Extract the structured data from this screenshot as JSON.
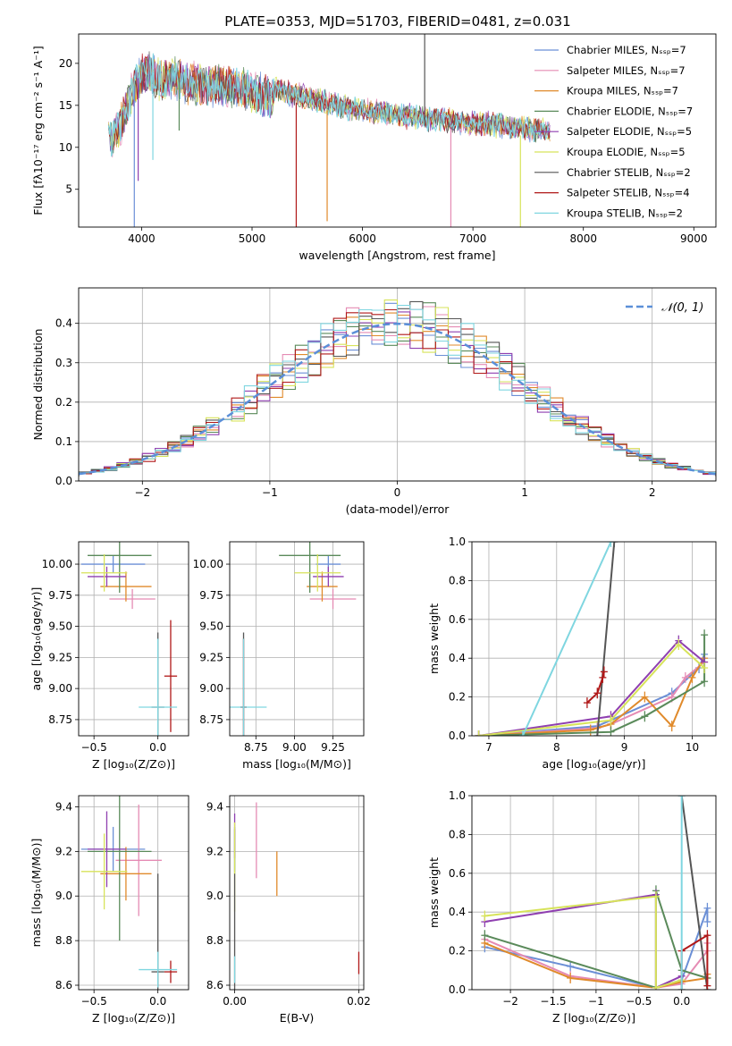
{
  "title": "PLATE=0353, MJD=51703, FIBERID=0481, z=0.031",
  "colors": {
    "chabrier_miles": "#6b8fd6",
    "salpeter_miles": "#e58bb4",
    "kroupa_miles": "#e08a2b",
    "chabrier_elodie": "#5a8a5a",
    "salpeter_elodie": "#8f3fb0",
    "kroupa_elodie": "#d7e35a",
    "chabrier_stelib": "#555555",
    "salpeter_stelib": "#b01818",
    "kroupa_stelib": "#7fd6e0",
    "gaussian": "#5b8fd8",
    "grid": "#b0b0b0"
  },
  "chart_data": [
    {
      "type": "line",
      "id": "spectrum",
      "xlabel": "wavelength [Angstrom, rest frame]",
      "ylabel": "Flux [fλ10⁻¹⁷ erg cm⁻² s⁻¹ A⁻¹]",
      "xlim": [
        3430,
        9200
      ],
      "ylim": [
        0.5,
        23.5
      ],
      "xticks": [
        4000,
        5000,
        6000,
        7000,
        8000,
        9000
      ],
      "yticks": [
        5,
        10,
        15,
        20
      ],
      "grid": false,
      "legend_position": "top-right",
      "series": [
        {
          "name": "Chabrier MILES, N_SSP=7",
          "color_key": "chabrier_miles"
        },
        {
          "name": "Salpeter MILES, N_SSP=7",
          "color_key": "salpeter_miles"
        },
        {
          "name": "Kroupa MILES, N_SSP=7",
          "color_key": "kroupa_miles"
        },
        {
          "name": "Chabrier ELODIE, N_SSP=7",
          "color_key": "chabrier_elodie"
        },
        {
          "name": "Salpeter ELODIE, N_SSP=5",
          "color_key": "salpeter_elodie"
        },
        {
          "name": "Kroupa ELODIE, N_SSP=5",
          "color_key": "kroupa_elodie"
        },
        {
          "name": "Chabrier STELIB, N_SSP=2",
          "color_key": "chabrier_stelib"
        },
        {
          "name": "Salpeter STELIB, N_SSP=4",
          "color_key": "salpeter_stelib"
        },
        {
          "name": "Kroupa STELIB, N_SSP=2",
          "color_key": "kroupa_stelib"
        }
      ],
      "envelope": {
        "x": [
          3700,
          3800,
          3900,
          4000,
          4100,
          4200,
          4300,
          4400,
          4600,
          4800,
          5000,
          5200,
          5500,
          5800,
          6000,
          6300,
          6600,
          6900,
          7200,
          7500,
          7700
        ],
        "y": [
          12.5,
          14.5,
          18.5,
          21.0,
          21.0,
          20.0,
          20.5,
          20.0,
          19.5,
          19.5,
          19.0,
          18.0,
          17.0,
          16.0,
          15.5,
          15.0,
          14.5,
          14.0,
          13.8,
          13.3,
          13.0
        ]
      },
      "spikes": [
        {
          "x": 3934,
          "y": 0.5
        },
        {
          "x": 3969,
          "y": 6.0
        },
        {
          "x": 4102,
          "y": 8.5
        },
        {
          "x": 4340,
          "y": 12.0
        },
        {
          "x": 5400,
          "y": 0.5
        },
        {
          "x": 5680,
          "y": 1.2
        },
        {
          "x": 6563,
          "y": 23.5
        },
        {
          "x": 6800,
          "y": 0.5
        },
        {
          "x": 7430,
          "y": 0.5
        }
      ]
    },
    {
      "type": "histogram",
      "id": "residuals",
      "xlabel": "(data-model)/error",
      "ylabel": "Normed distribution",
      "xlim": [
        -2.5,
        2.5
      ],
      "ylim": [
        0,
        0.49
      ],
      "xticks": [
        -2,
        -1,
        0,
        1,
        2
      ],
      "yticks": [
        0.0,
        0.1,
        0.2,
        0.3,
        0.4
      ],
      "grid": true,
      "legend_position": "top-right",
      "gaussian_label": "𝒩(0, 1)",
      "bin_width": 0.1
    },
    {
      "type": "scatter",
      "id": "age_vs_Z",
      "xlabel": "Z [log₁₀(Z/Z⊙)]",
      "ylabel": "age  [log₁₀(age/yr)]",
      "xlim": [
        -0.62,
        0.24
      ],
      "ylim": [
        8.62,
        10.18
      ],
      "xticks": [
        -0.5,
        0.0
      ],
      "yticks": [
        8.75,
        9.0,
        9.25,
        9.5,
        9.75,
        10.0
      ],
      "points": [
        {
          "key": "chabrier_miles",
          "x": -0.35,
          "y": 10.0,
          "xerr": 0.25,
          "yerr": 0.07
        },
        {
          "key": "salpeter_miles",
          "x": -0.2,
          "y": 9.72,
          "xerr": 0.18,
          "yerr": 0.08
        },
        {
          "key": "kroupa_miles",
          "x": -0.25,
          "y": 9.82,
          "xerr": 0.2,
          "yerr": 0.12
        },
        {
          "key": "chabrier_elodie",
          "x": -0.3,
          "y": 10.07,
          "xerr": 0.25,
          "yerr": 0.3
        },
        {
          "key": "salpeter_elodie",
          "x": -0.4,
          "y": 9.9,
          "xerr": 0.15,
          "yerr": 0.08
        },
        {
          "key": "kroupa_elodie",
          "x": -0.42,
          "y": 9.93,
          "xerr": 0.18,
          "yerr": 0.15
        },
        {
          "key": "chabrier_stelib",
          "x": 0.0,
          "y": 8.85,
          "xerr": 0.05,
          "yerr": 0.6
        },
        {
          "key": "salpeter_stelib",
          "x": 0.1,
          "y": 9.1,
          "xerr": 0.05,
          "yerr": 0.45
        },
        {
          "key": "kroupa_stelib",
          "x": 0.0,
          "y": 8.85,
          "xerr": 0.15,
          "yerr": 0.55
        }
      ]
    },
    {
      "type": "scatter",
      "id": "age_vs_mass",
      "xlabel": "mass [log₁₀(M/M⊙)]",
      "ylabel": "",
      "xlim": [
        8.58,
        9.45
      ],
      "ylim": [
        8.62,
        10.18
      ],
      "xticks": [
        8.75,
        9.0,
        9.25
      ],
      "yticks": [
        8.75,
        9.0,
        9.25,
        9.5,
        9.75,
        10.0
      ],
      "points": [
        {
          "key": "chabrier_miles",
          "x": 9.22,
          "y": 10.0,
          "xerr": 0.08,
          "yerr": 0.07
        },
        {
          "key": "salpeter_miles",
          "x": 9.25,
          "y": 9.72,
          "xerr": 0.15,
          "yerr": 0.08
        },
        {
          "key": "kroupa_miles",
          "x": 9.18,
          "y": 9.82,
          "xerr": 0.1,
          "yerr": 0.12
        },
        {
          "key": "chabrier_elodie",
          "x": 9.1,
          "y": 10.07,
          "xerr": 0.2,
          "yerr": 0.3
        },
        {
          "key": "salpeter_elodie",
          "x": 9.22,
          "y": 9.9,
          "xerr": 0.1,
          "yerr": 0.08
        },
        {
          "key": "kroupa_elodie",
          "x": 9.15,
          "y": 9.93,
          "xerr": 0.15,
          "yerr": 0.15
        },
        {
          "key": "chabrier_stelib",
          "x": 8.67,
          "y": 8.85,
          "xerr": 0.02,
          "yerr": 0.6
        },
        {
          "key": "salpeter_stelib",
          "x": 8.67,
          "y": 8.85,
          "xerr": 0.02,
          "yerr": 0.55
        },
        {
          "key": "kroupa_stelib",
          "x": 8.67,
          "y": 8.85,
          "xerr": 0.15,
          "yerr": 0.55
        }
      ]
    },
    {
      "type": "line",
      "id": "weight_vs_age",
      "xlabel": "age  [log₁₀(age/yr)]",
      "ylabel": "mass weight",
      "xlim": [
        6.75,
        10.35
      ],
      "ylim": [
        0,
        1.0
      ],
      "xticks": [
        7,
        8,
        9,
        10
      ],
      "yticks": [
        0.0,
        0.2,
        0.4,
        0.6,
        0.8,
        1.0
      ],
      "grid": true,
      "series": [
        {
          "key": "chabrier_miles",
          "x": [
            6.85,
            8.6,
            8.8,
            9.7,
            10.1,
            10.18
          ],
          "y": [
            0.0,
            0.05,
            0.08,
            0.22,
            0.35,
            0.42
          ]
        },
        {
          "key": "salpeter_miles",
          "x": [
            6.85,
            8.6,
            8.8,
            9.7,
            9.9,
            10.18
          ],
          "y": [
            0.0,
            0.04,
            0.06,
            0.2,
            0.3,
            0.38
          ]
        },
        {
          "key": "kroupa_miles",
          "x": [
            6.85,
            8.5,
            8.8,
            9.3,
            9.7,
            10.0,
            10.18
          ],
          "y": [
            0.0,
            0.03,
            0.06,
            0.2,
            0.05,
            0.3,
            0.4
          ]
        },
        {
          "key": "chabrier_elodie",
          "x": [
            6.85,
            8.8,
            9.3,
            10.18,
            10.18
          ],
          "y": [
            0.0,
            0.02,
            0.1,
            0.28,
            0.52
          ]
        },
        {
          "key": "salpeter_elodie",
          "x": [
            6.85,
            8.8,
            9.8,
            10.18
          ],
          "y": [
            0.0,
            0.1,
            0.49,
            0.38
          ]
        },
        {
          "key": "kroupa_elodie",
          "x": [
            6.85,
            8.8,
            9.8,
            10.18
          ],
          "y": [
            0.0,
            0.08,
            0.47,
            0.35
          ]
        },
        {
          "key": "chabrier_stelib",
          "x": [
            8.6,
            8.85
          ],
          "y": [
            0.0,
            1.0
          ]
        },
        {
          "key": "salpeter_stelib",
          "x": [
            8.45,
            8.6,
            8.68,
            8.7
          ],
          "y": [
            0.17,
            0.22,
            0.3,
            0.33
          ]
        },
        {
          "key": "kroupa_stelib",
          "x": [
            7.5,
            8.8
          ],
          "y": [
            0.0,
            1.0
          ]
        }
      ]
    },
    {
      "type": "scatter",
      "id": "mass_vs_Z",
      "xlabel": "Z [log₁₀(Z/Z⊙)]",
      "ylabel": "mass [log₁₀(M/M⊙)]",
      "xlim": [
        -0.62,
        0.24
      ],
      "ylim": [
        8.58,
        9.45
      ],
      "xticks": [
        -0.5,
        0.0
      ],
      "yticks": [
        8.6,
        8.8,
        9.0,
        9.2,
        9.4
      ],
      "points": [
        {
          "key": "chabrier_miles",
          "x": -0.35,
          "y": 9.21,
          "xerr": 0.25,
          "yerr": 0.1
        },
        {
          "key": "salpeter_miles",
          "x": -0.15,
          "y": 9.16,
          "xerr": 0.18,
          "yerr": 0.25
        },
        {
          "key": "kroupa_miles",
          "x": -0.25,
          "y": 9.1,
          "xerr": 0.2,
          "yerr": 0.12
        },
        {
          "key": "chabrier_elodie",
          "x": -0.3,
          "y": 9.2,
          "xerr": 0.25,
          "yerr": 0.4
        },
        {
          "key": "salpeter_elodie",
          "x": -0.4,
          "y": 9.21,
          "xerr": 0.15,
          "yerr": 0.17
        },
        {
          "key": "kroupa_elodie",
          "x": -0.42,
          "y": 9.11,
          "xerr": 0.18,
          "yerr": 0.17
        },
        {
          "key": "chabrier_stelib",
          "x": 0.0,
          "y": 8.66,
          "xerr": 0.05,
          "yerr": 0.44
        },
        {
          "key": "salpeter_stelib",
          "x": 0.1,
          "y": 8.66,
          "xerr": 0.05,
          "yerr": 0.05
        },
        {
          "key": "kroupa_stelib",
          "x": 0.0,
          "y": 8.67,
          "xerr": 0.15,
          "yerr": 0.08
        }
      ]
    },
    {
      "type": "scatter",
      "id": "mass_vs_ebv",
      "xlabel": "E(B-V)",
      "ylabel": "",
      "xlim": [
        -0.0008,
        0.0208
      ],
      "ylim": [
        8.58,
        9.45
      ],
      "xticks": [
        0.0,
        0.02
      ],
      "yticks": [
        8.6,
        8.8,
        9.0,
        9.2,
        9.4
      ],
      "points": [
        {
          "key": "chabrier_miles",
          "x": 0.0,
          "y": 9.21,
          "xerr": 0.0,
          "yerr": 0.1
        },
        {
          "key": "salpeter_miles",
          "x": 0.0035,
          "y": 9.25,
          "xerr": 0.0,
          "yerr": 0.17
        },
        {
          "key": "kroupa_miles",
          "x": 0.0068,
          "y": 9.1,
          "xerr": 0.0,
          "yerr": 0.1
        },
        {
          "key": "chabrier_elodie",
          "x": 0.0,
          "y": 9.2,
          "xerr": 0.0,
          "yerr": 0.1
        },
        {
          "key": "salpeter_elodie",
          "x": 0.0,
          "y": 9.27,
          "xerr": 0.0,
          "yerr": 0.1
        },
        {
          "key": "kroupa_elodie",
          "x": 0.0,
          "y": 9.13,
          "xerr": 0.0,
          "yerr": 0.2
        },
        {
          "key": "chabrier_stelib",
          "x": 0.0,
          "y": 8.66,
          "xerr": 0.0,
          "yerr": 0.44
        },
        {
          "key": "salpeter_stelib",
          "x": 0.02,
          "y": 8.7,
          "xerr": 0.0,
          "yerr": 0.05
        },
        {
          "key": "kroupa_stelib",
          "x": 0.0,
          "y": 8.67,
          "xerr": 0.0,
          "yerr": 0.06
        }
      ]
    },
    {
      "type": "line",
      "id": "weight_vs_Z",
      "xlabel": "Z [log₁₀(Z/Z⊙)]",
      "ylabel": "mass weight",
      "xlim": [
        -2.45,
        0.4
      ],
      "ylim": [
        0,
        1.0
      ],
      "xticks": [
        -2.0,
        -1.5,
        -1.0,
        -0.5,
        0.0
      ],
      "yticks": [
        0.0,
        0.2,
        0.4,
        0.6,
        0.8,
        1.0
      ],
      "grid": true,
      "series": [
        {
          "key": "chabrier_miles",
          "x": [
            -2.3,
            -1.3,
            -0.3,
            0.0,
            0.3,
            0.3
          ],
          "y": [
            0.22,
            0.12,
            0.01,
            0.05,
            0.42,
            0.35
          ]
        },
        {
          "key": "salpeter_miles",
          "x": [
            -2.3,
            -1.3,
            -0.3,
            0.0,
            0.3,
            0.3
          ],
          "y": [
            0.26,
            0.07,
            0.01,
            0.03,
            0.2,
            0.24
          ]
        },
        {
          "key": "kroupa_miles",
          "x": [
            -2.3,
            -1.3,
            -0.3,
            0.0,
            0.3,
            0.3
          ],
          "y": [
            0.24,
            0.06,
            0.01,
            0.04,
            0.06,
            0.08
          ]
        },
        {
          "key": "chabrier_elodie",
          "x": [
            -2.3,
            -0.3,
            -0.3,
            0.0,
            0.3
          ],
          "y": [
            0.28,
            0.01,
            0.51,
            0.1,
            0.06
          ]
        },
        {
          "key": "salpeter_elodie",
          "x": [
            -2.3,
            -0.3,
            -0.3,
            0.0
          ],
          "y": [
            0.35,
            0.49,
            0.01,
            0.07
          ]
        },
        {
          "key": "kroupa_elodie",
          "x": [
            -2.3,
            -0.3,
            -0.3,
            0.0
          ],
          "y": [
            0.38,
            0.48,
            0.01,
            0.05
          ]
        },
        {
          "key": "chabrier_stelib",
          "x": [
            0.0,
            0.3
          ],
          "y": [
            1.0,
            0.0
          ]
        },
        {
          "key": "salpeter_stelib",
          "x": [
            0.0,
            0.0,
            0.3,
            0.3
          ],
          "y": [
            0.0,
            0.2,
            0.28,
            0.02
          ]
        },
        {
          "key": "kroupa_stelib",
          "x": [
            0.0,
            0.0
          ],
          "y": [
            0.0,
            1.0
          ]
        }
      ]
    }
  ]
}
